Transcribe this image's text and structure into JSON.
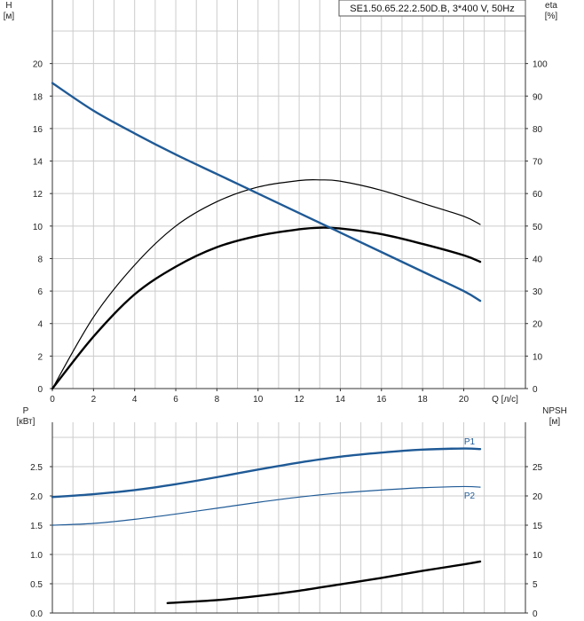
{
  "chart_data": [
    {
      "type": "line",
      "title": "SE1.50.65.22.2.50D.B, 3*400 V, 50Hz",
      "xlabel": "Q [л/с]",
      "ylabel_left": [
        "H",
        "[м]"
      ],
      "ylabel_right": [
        "eta",
        "[%]"
      ],
      "xlim": [
        0,
        23
      ],
      "ylim_left": [
        0,
        22
      ],
      "ylim_right": [
        0,
        110
      ],
      "x_ticks": [
        0,
        2,
        4,
        6,
        8,
        10,
        12,
        14,
        16,
        18,
        20
      ],
      "y_ticks_left": [
        0,
        2,
        4,
        6,
        8,
        10,
        12,
        14,
        16,
        18,
        20
      ],
      "y_ticks_right": [
        0,
        10,
        20,
        30,
        40,
        50,
        60,
        70,
        80,
        90,
        100
      ],
      "grid": true,
      "colors": {
        "head": "#1f5a96",
        "efficiency": "#000000",
        "grid": "#cccccc"
      },
      "series": [
        {
          "axis": "left",
          "x": [
            0,
            2,
            4,
            6,
            8,
            10,
            12,
            14,
            16,
            18,
            20,
            20.8
          ],
          "values": [
            18.8,
            17.1,
            15.7,
            14.4,
            13.2,
            12.0,
            10.8,
            9.6,
            8.4,
            7.2,
            6.0,
            5.4
          ]
        },
        {
          "axis": "right",
          "x": [
            0,
            2,
            4,
            6,
            8,
            10,
            12,
            13,
            14,
            16,
            18,
            20,
            20.8
          ],
          "values": [
            0,
            22,
            38,
            50,
            57.5,
            62,
            64,
            64.2,
            63.8,
            61,
            57,
            53,
            50.5
          ]
        },
        {
          "axis": "left",
          "x": [
            0,
            2,
            4,
            6,
            8,
            10,
            12,
            13,
            14,
            16,
            18,
            20,
            20.8
          ],
          "values": [
            0,
            3.2,
            5.8,
            7.5,
            8.7,
            9.4,
            9.8,
            9.9,
            9.85,
            9.5,
            8.9,
            8.2,
            7.8
          ]
        }
      ]
    },
    {
      "type": "line",
      "ylabel_left": [
        "P",
        "[кВт]"
      ],
      "ylabel_right": [
        "NPSH",
        "[м]"
      ],
      "xlim": [
        0,
        23
      ],
      "ylim_left": [
        0,
        3.0
      ],
      "ylim_right": [
        0,
        30
      ],
      "y_ticks_left": [
        "0.0",
        "0.5",
        "1.0",
        "1.5",
        "2.0",
        "2.5"
      ],
      "y_ticks_right": [
        0,
        5,
        10,
        15,
        20,
        25
      ],
      "grid": true,
      "colors": {
        "power": "#1f5a96",
        "npsh": "#000000"
      },
      "series": [
        {
          "name": "P1",
          "axis": "left",
          "x": [
            0,
            2,
            4,
            6,
            8,
            10,
            12,
            14,
            16,
            18,
            20,
            20.8
          ],
          "values": [
            1.98,
            2.03,
            2.1,
            2.2,
            2.32,
            2.45,
            2.57,
            2.67,
            2.74,
            2.79,
            2.81,
            2.8
          ]
        },
        {
          "name": "P2",
          "axis": "left",
          "x": [
            0,
            2,
            4,
            6,
            8,
            10,
            12,
            14,
            16,
            18,
            20,
            20.8
          ],
          "values": [
            1.5,
            1.53,
            1.6,
            1.69,
            1.79,
            1.89,
            1.98,
            2.05,
            2.1,
            2.14,
            2.16,
            2.15
          ]
        },
        {
          "axis": "right",
          "x": [
            5.6,
            8,
            10,
            12,
            14,
            16,
            18,
            20,
            20.8
          ],
          "values": [
            1.7,
            2.2,
            2.9,
            3.8,
            4.9,
            6.0,
            7.2,
            8.3,
            8.8
          ]
        }
      ]
    }
  ]
}
